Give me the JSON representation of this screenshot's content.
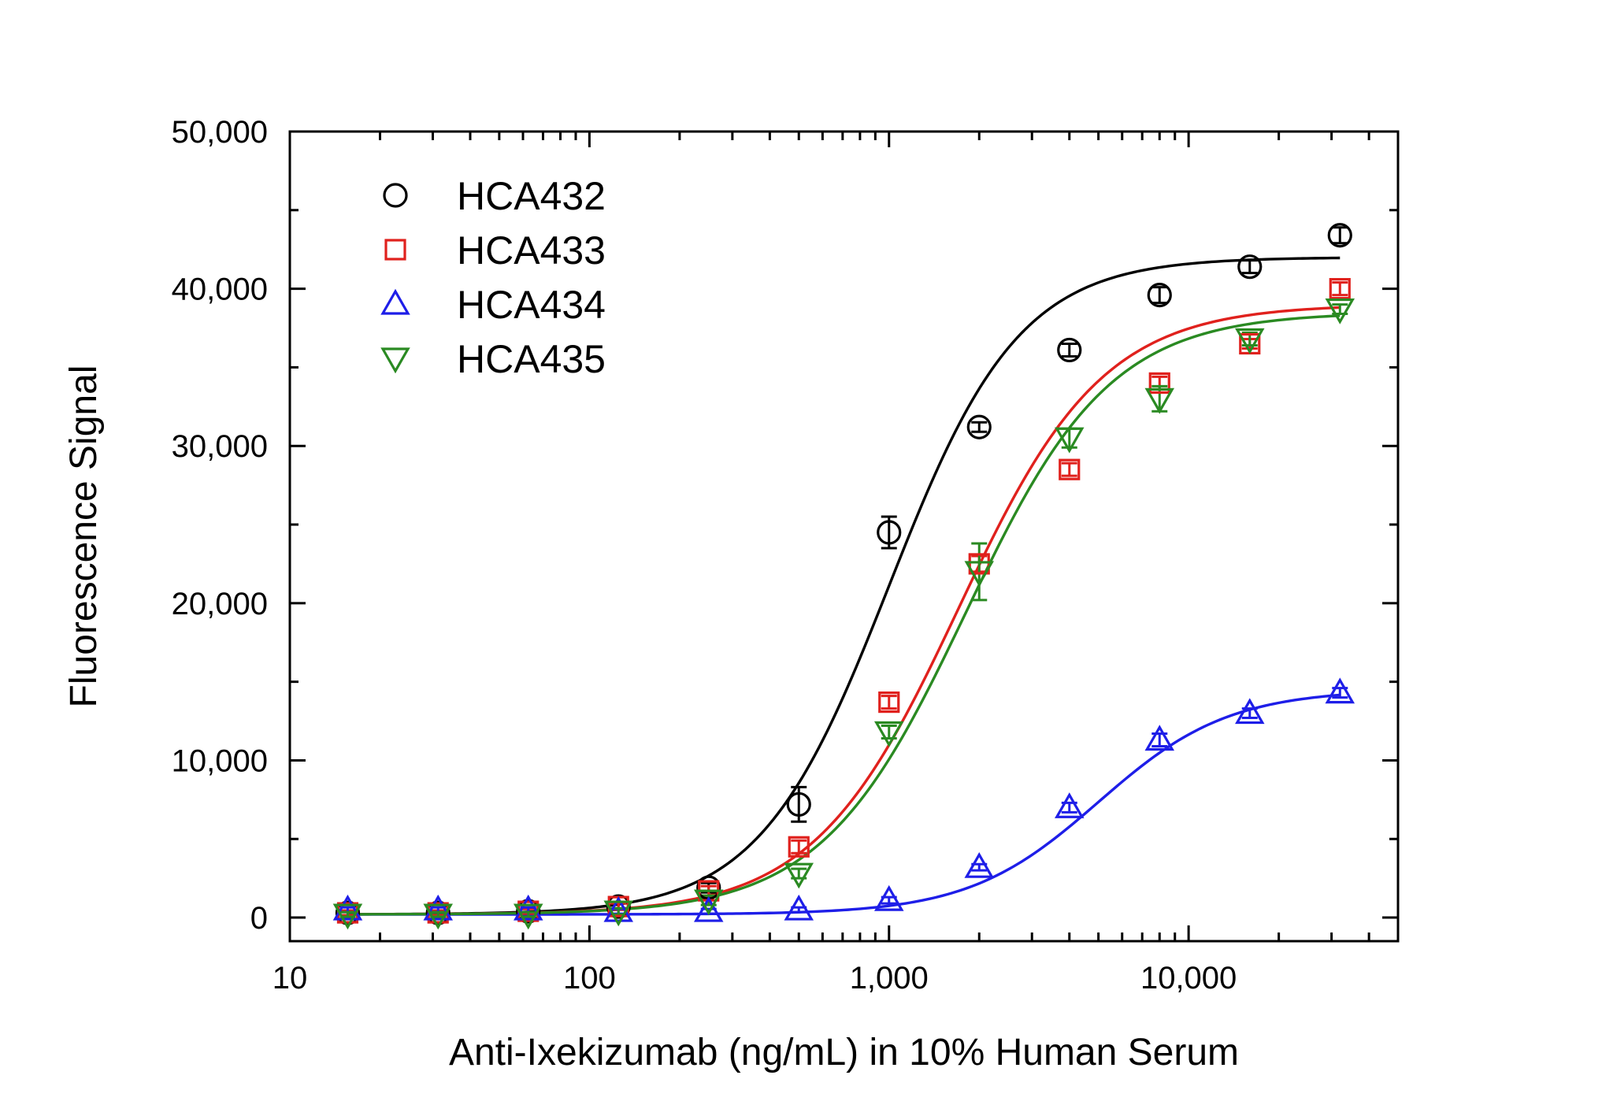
{
  "chart_data": {
    "type": "scatter",
    "title": "",
    "xlabel": "Anti-Ixekizumab (ng/mL) in 10% Human Serum",
    "ylabel": "Fluorescence Signal",
    "xscale": "log",
    "xlim": [
      10,
      50000
    ],
    "ylim": [
      -1500,
      50000
    ],
    "xticks": [
      10,
      100,
      1000,
      10000
    ],
    "xtick_labels": [
      "10",
      "100",
      "1,000",
      "10,000"
    ],
    "yticks": [
      0,
      10000,
      20000,
      30000,
      40000,
      50000
    ],
    "ytick_labels": [
      "0",
      "10,000",
      "20,000",
      "30,000",
      "40,000",
      "50,000"
    ],
    "grid": false,
    "legend_position": "top-left",
    "x": [
      15.6,
      31.25,
      62.5,
      125,
      250,
      500,
      1000,
      2000,
      4000,
      8000,
      16000,
      32000
    ],
    "series": [
      {
        "name": "HCA432",
        "marker": "circle",
        "color": "#000000",
        "values": [
          300,
          300,
          400,
          700,
          1900,
          7200,
          24500,
          31200,
          36100,
          39600,
          41400,
          43400
        ],
        "errors": [
          150,
          150,
          150,
          200,
          300,
          1100,
          1000,
          300,
          400,
          500,
          400,
          500
        ],
        "fit": {
          "bottom": 200,
          "top": 42000,
          "ec50": 1000,
          "hill": 2.0
        }
      },
      {
        "name": "HCA433",
        "marker": "square",
        "color": "#e0211d",
        "values": [
          300,
          300,
          400,
          700,
          1700,
          4500,
          13700,
          22500,
          28500,
          34000,
          36500,
          40000
        ],
        "errors": [
          150,
          150,
          150,
          200,
          300,
          400,
          400,
          500,
          400,
          400,
          300,
          400
        ],
        "fit": {
          "bottom": 200,
          "top": 39000,
          "ec50": 1700,
          "hill": 1.8
        }
      },
      {
        "name": "HCA434",
        "marker": "triangle-up",
        "color": "#1e1ee8",
        "values": [
          500,
          500,
          500,
          400,
          400,
          500,
          1100,
          3200,
          7000,
          11300,
          13000,
          14300
        ],
        "errors": [
          150,
          150,
          150,
          150,
          150,
          150,
          200,
          200,
          300,
          400,
          300,
          300
        ],
        "fit": {
          "bottom": 200,
          "top": 14500,
          "ec50": 5000,
          "hill": 2.0
        }
      },
      {
        "name": "HCA435",
        "marker": "triangle-down",
        "color": "#2a8a22",
        "values": [
          200,
          200,
          200,
          400,
          1100,
          2800,
          11800,
          22000,
          30500,
          33000,
          36800,
          38700
        ],
        "errors": [
          150,
          150,
          150,
          200,
          300,
          300,
          400,
          1800,
          600,
          800,
          400,
          300
        ],
        "fit": {
          "bottom": 200,
          "top": 38500,
          "ec50": 1800,
          "hill": 1.8
        }
      }
    ]
  }
}
